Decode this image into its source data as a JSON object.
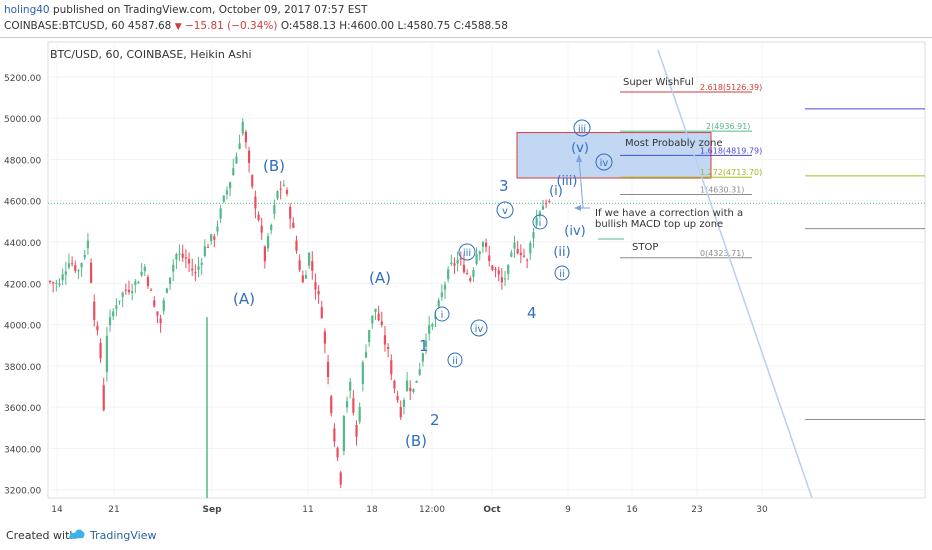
{
  "header": {
    "author": "holing40",
    "published": "published on TradingView.com, October 09, 2017 07:57 EST",
    "symbol": "COINBASE:BTCUSD, 60",
    "last": "4587.68",
    "change": "−15.81 (−0.34%)",
    "open": "O:4588.13",
    "high": "H:4600.00",
    "low": "L:4580.75",
    "close": "C:4588.58"
  },
  "footer": {
    "created_with": "Created with",
    "brand": "TradingView"
  },
  "chart_data": {
    "type": "candlestick",
    "title": "BTC/USD, 60, COINBASE, Heikin Ashi",
    "ylim": [
      3160,
      5330
    ],
    "y_ticks": [
      3200,
      3400,
      3600,
      3800,
      4000,
      4200,
      4400,
      4600,
      4800,
      5000,
      5200
    ],
    "y_tick_labels": [
      "3200.00",
      "3400.00",
      "3600.00",
      "3800.00",
      "4000.00",
      "4200.00",
      "4400.00",
      "4600.00",
      "4800.00",
      "5000.00",
      "5200.00"
    ],
    "current_price": 4587.68,
    "current_price_label": "4587.68",
    "x_tick_labels": [
      "14",
      "21",
      "Sep",
      "11",
      "18",
      "12:00",
      "Oct",
      "9",
      "16",
      "23",
      "30"
    ],
    "colors": {
      "up": "#53b987",
      "down": "#eb4d5c",
      "fib": "#8c8c8c",
      "wave": "#2f6fc1",
      "zone": "#b7d0f1"
    },
    "price_path": [
      [
        0,
        4210
      ],
      [
        3,
        4190
      ],
      [
        6,
        4320
      ],
      [
        9,
        4260
      ],
      [
        12,
        4400
      ],
      [
        14,
        4050
      ],
      [
        16,
        3840
      ],
      [
        17,
        3600
      ],
      [
        18,
        3960
      ],
      [
        21,
        4110
      ],
      [
        24,
        4170
      ],
      [
        27,
        4200
      ],
      [
        30,
        4280
      ],
      [
        33,
        4080
      ],
      [
        35,
        4010
      ],
      [
        37,
        4200
      ],
      [
        40,
        4340
      ],
      [
        43,
        4320
      ],
      [
        46,
        4240
      ],
      [
        49,
        4370
      ],
      [
        52,
        4430
      ],
      [
        55,
        4600
      ],
      [
        57,
        4700
      ],
      [
        59,
        4820
      ],
      [
        61,
        4980
      ],
      [
        62,
        4870
      ],
      [
        64,
        4650
      ],
      [
        66,
        4520
      ],
      [
        68,
        4320
      ],
      [
        70,
        4480
      ],
      [
        72,
        4640
      ],
      [
        74,
        4680
      ],
      [
        76,
        4540
      ],
      [
        78,
        4360
      ],
      [
        80,
        4200
      ],
      [
        82,
        4340
      ],
      [
        84,
        4190
      ],
      [
        86,
        4060
      ],
      [
        88,
        3740
      ],
      [
        90,
        3460
      ],
      [
        92,
        3250
      ],
      [
        93,
        3580
      ],
      [
        95,
        3700
      ],
      [
        97,
        3450
      ],
      [
        99,
        3800
      ],
      [
        101,
        3980
      ],
      [
        103,
        4080
      ],
      [
        105,
        3970
      ],
      [
        107,
        3860
      ],
      [
        109,
        3700
      ],
      [
        111,
        3580
      ],
      [
        113,
        3720
      ],
      [
        115,
        3680
      ],
      [
        117,
        3800
      ],
      [
        119,
        3950
      ],
      [
        121,
        3990
      ],
      [
        123,
        4090
      ],
      [
        125,
        4200
      ],
      [
        127,
        4280
      ],
      [
        129,
        4310
      ],
      [
        131,
        4280
      ],
      [
        133,
        4220
      ],
      [
        135,
        4350
      ],
      [
        137,
        4410
      ],
      [
        139,
        4300
      ],
      [
        141,
        4260
      ],
      [
        143,
        4200
      ],
      [
        145,
        4260
      ],
      [
        147,
        4380
      ],
      [
        149,
        4360
      ],
      [
        151,
        4300
      ],
      [
        153,
        4470
      ],
      [
        155,
        4560
      ],
      [
        157,
        4600
      ],
      [
        158,
        4588
      ]
    ],
    "fib_levels": [
      {
        "label": "2.618(5126.39)",
        "value": 5126.39,
        "color": "#d23b3b"
      },
      {
        "label": "2(4936.91)",
        "value": 4936.91,
        "color": "#53b987"
      },
      {
        "label": "1.618(4819.79)",
        "value": 4819.79,
        "color": "#4a4ad0"
      },
      {
        "label": "1.272(4713.70)",
        "value": 4713.7,
        "color": "#a6b821"
      },
      {
        "label": "1(4630.31)",
        "value": 4630.31,
        "color": "#8c8c8c"
      },
      {
        "label": "0(4323.71)",
        "value": 4323.71,
        "color": "#8c8c8c"
      }
    ],
    "zone": {
      "from": 4710,
      "to": 4930,
      "label": "Most Probably zone"
    },
    "annotations": [
      {
        "text": "Super WishFul"
      },
      {
        "text": "Most Probably zone"
      },
      {
        "text": "If we have a correction with a"
      },
      {
        "text": "bullish MACD top up zone"
      },
      {
        "text": "STOP"
      }
    ],
    "wave_labels": [
      "(A)",
      "(B)",
      "(A)",
      "(B)",
      "1",
      "2",
      "3",
      "4",
      "i",
      "ii",
      "iii",
      "iv",
      "v",
      "(i)",
      "(ii)",
      "(iii)",
      "(iv)",
      "(v)",
      "i",
      "ii",
      "iii",
      "iv"
    ],
    "right_lines": [
      {
        "value": 5045,
        "color": "#4a4ad0"
      },
      {
        "value": 4720,
        "color": "#a6b821"
      },
      {
        "value": 4465,
        "color": "#8c8c8c"
      },
      {
        "value": 3540,
        "color": "#8c8c8c"
      }
    ]
  }
}
